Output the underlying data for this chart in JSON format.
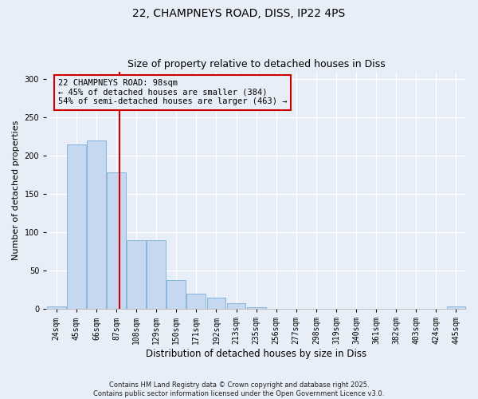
{
  "title_line1": "22, CHAMPNEYS ROAD, DISS, IP22 4PS",
  "title_line2": "Size of property relative to detached houses in Diss",
  "xlabel": "Distribution of detached houses by size in Diss",
  "ylabel": "Number of detached properties",
  "annotation_line1": "22 CHAMPNEYS ROAD: 98sqm",
  "annotation_line2": "← 45% of detached houses are smaller (384)",
  "annotation_line3": "54% of semi-detached houses are larger (463) →",
  "property_size_sqm": 98,
  "vline_x_index": 3.15,
  "categories": [
    "24sqm",
    "45sqm",
    "66sqm",
    "87sqm",
    "108sqm",
    "129sqm",
    "150sqm",
    "171sqm",
    "192sqm",
    "213sqm",
    "235sqm",
    "256sqm",
    "277sqm",
    "298sqm",
    "319sqm",
    "340sqm",
    "361sqm",
    "382sqm",
    "403sqm",
    "424sqm",
    "445sqm"
  ],
  "bar_values": [
    3,
    215,
    220,
    178,
    90,
    90,
    38,
    20,
    15,
    7,
    2,
    0,
    0,
    0,
    0,
    0,
    0,
    0,
    0,
    0,
    3
  ],
  "bar_color": "#c5d8f0",
  "bar_edge_color": "#7aaed4",
  "vline_color": "#cc0000",
  "annotation_box_edge_color": "#cc0000",
  "background_color": "#e8eef8",
  "plot_bg_color": "#e8eef8",
  "ylim": [
    0,
    310
  ],
  "yticks": [
    0,
    50,
    100,
    150,
    200,
    250,
    300
  ],
  "footer_line1": "Contains HM Land Registry data © Crown copyright and database right 2025.",
  "footer_line2": "Contains public sector information licensed under the Open Government Licence v3.0.",
  "title_fontsize": 10,
  "subtitle_fontsize": 9,
  "tick_fontsize": 7,
  "xlabel_fontsize": 8.5,
  "ylabel_fontsize": 8
}
